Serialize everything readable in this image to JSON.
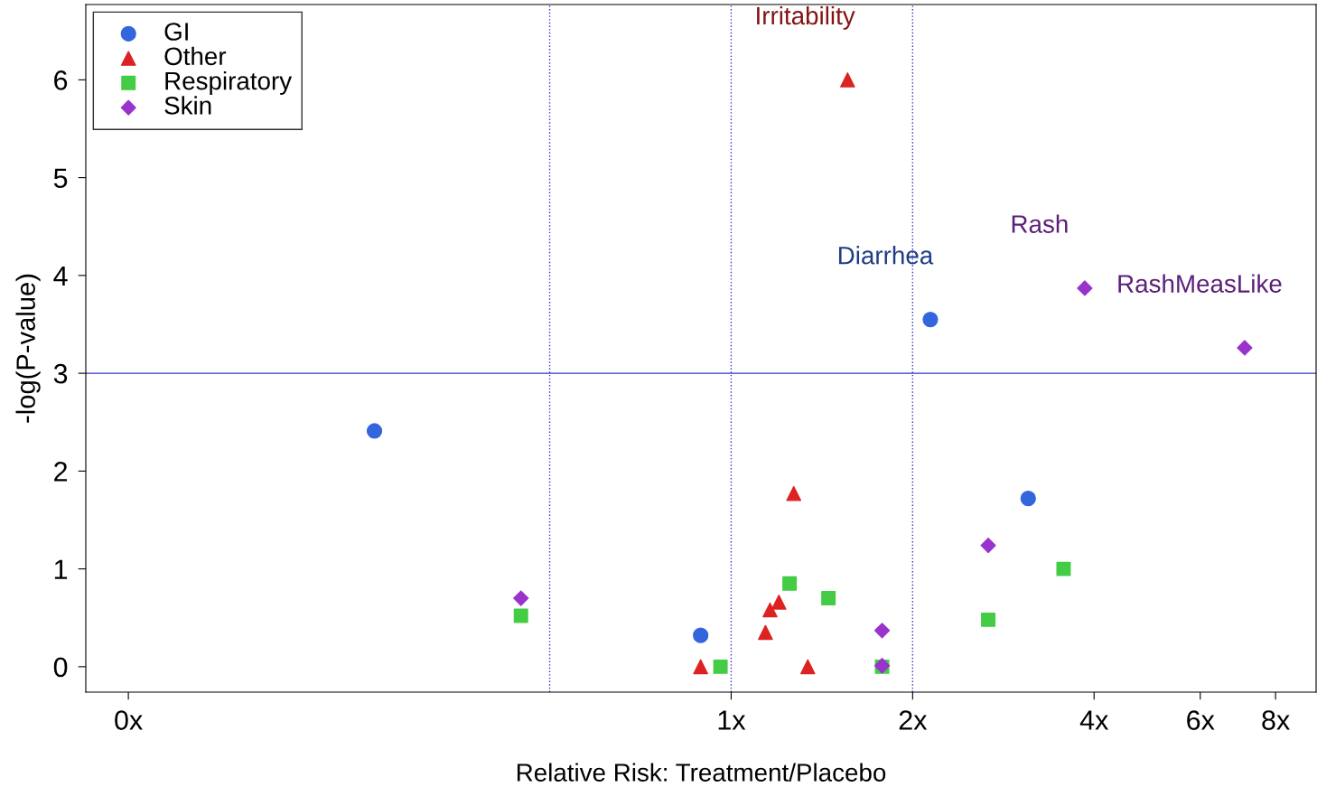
{
  "chart_data": {
    "type": "scatter",
    "xlabel": "Relative Risk: Treatment/Placebo",
    "ylabel": "-log(P-value)",
    "log": "x",
    "xlim": [
      0.085,
      9.34
    ],
    "ylim": [
      -0.26,
      6.77
    ],
    "xticks": [
      {
        "value": 0.1,
        "label": "0x"
      },
      {
        "value": 1,
        "label": "1x"
      },
      {
        "value": 2,
        "label": "2x"
      },
      {
        "value": 4,
        "label": "4x"
      },
      {
        "value": 6,
        "label": "6x"
      },
      {
        "value": 8,
        "label": "8x"
      }
    ],
    "yticks": [
      0,
      1,
      2,
      3,
      4,
      5,
      6
    ],
    "grid": false,
    "legend": "top left",
    "series": [
      {
        "name": "GI",
        "color": "#3366dd",
        "marker": "circle",
        "x": [
          0.256,
          0.89,
          2.14,
          3.11
        ],
        "values": [
          2.41,
          0.32,
          3.55,
          1.72
        ]
      },
      {
        "name": "Other",
        "color": "#dd2222",
        "marker": "triangle",
        "x": [
          1.56,
          1.27,
          0.89,
          1.34,
          1.14,
          1.16,
          1.2
        ],
        "values": [
          6.0,
          1.77,
          0.0,
          0.0,
          0.35,
          0.58,
          0.66
        ]
      },
      {
        "name": "Respiratory",
        "color": "#44cc44",
        "marker": "square",
        "x": [
          0.448,
          0.96,
          1.25,
          1.45,
          1.78,
          2.67,
          3.56
        ],
        "values": [
          0.52,
          0.0,
          0.85,
          0.7,
          0.0,
          0.48,
          1.0
        ]
      },
      {
        "name": "Skin",
        "color": "#9933cc",
        "marker": "diamond",
        "x": [
          0.448,
          1.78,
          1.78,
          2.67,
          3.86,
          7.11
        ],
        "values": [
          0.7,
          0.37,
          0.01,
          1.24,
          3.87,
          3.26
        ]
      }
    ],
    "ref_lines": [
      {
        "axis": "x",
        "value": 0.5,
        "color": "#3333cc",
        "line_style": "dotted"
      },
      {
        "axis": "x",
        "value": 1,
        "color": "#3333cc",
        "line_style": "dotted"
      },
      {
        "axis": "x",
        "value": 2,
        "color": "#3333cc",
        "line_style": "dotted"
      },
      {
        "axis": "y",
        "value": 3,
        "color": "#3333cc",
        "line_style": "solid"
      }
    ],
    "annotations": [
      {
        "text": "Irritability",
        "x": 1.56,
        "y": 6.0
      },
      {
        "text": "Diarrhea",
        "x": 2.14,
        "y": 3.55
      },
      {
        "text": "Rash",
        "x": 3.86,
        "y": 3.87
      },
      {
        "text": "RashMeasLike",
        "x": 7.11,
        "y": 3.26
      }
    ]
  }
}
